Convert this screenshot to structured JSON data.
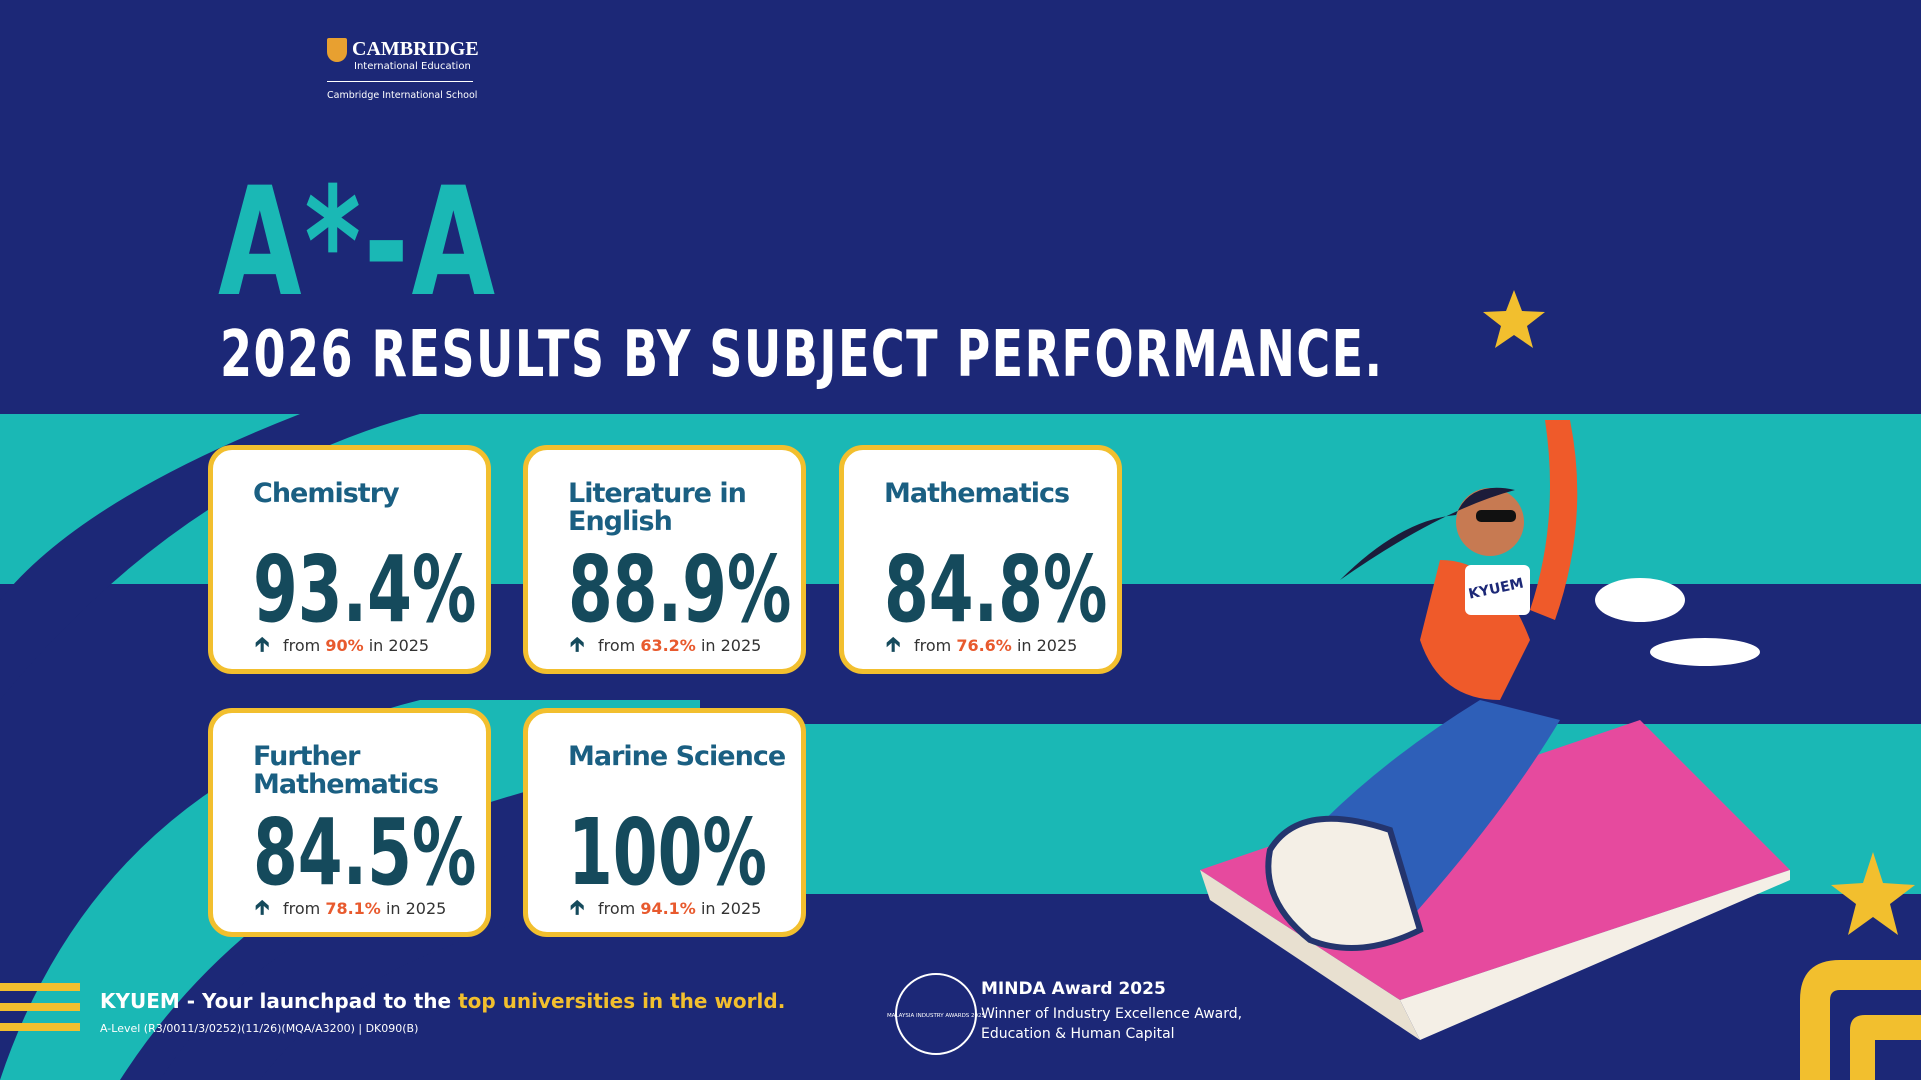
{
  "logo": {
    "brand": "CAMBRIDGE",
    "sub": "International Education",
    "school": "Cambridge International School"
  },
  "heading": {
    "grade": "A*-A",
    "title": "2026 RESULTS BY SUBJECT PERFORMANCE."
  },
  "cards": [
    {
      "subject": "Chemistry",
      "result": "93.4%",
      "from": "from",
      "previous": "90%",
      "year": "in 2025"
    },
    {
      "subject": "Literature in English",
      "result": "88.9%",
      "from": "from",
      "previous": "63.2%",
      "year": "in 2025"
    },
    {
      "subject": "Mathematics",
      "result": "84.8%",
      "from": "from",
      "previous": "76.6%",
      "year": "in 2025"
    },
    {
      "subject": "Further Mathematics",
      "result": "84.5%",
      "from": "from",
      "previous": "78.1%",
      "year": "in 2025"
    },
    {
      "subject": "Marine Science",
      "result": "100%",
      "from": "from",
      "previous": "94.1%",
      "year": "in 2025"
    }
  ],
  "illustration": {
    "shirt": "KYUEM"
  },
  "footer": {
    "tagline": "KYUEM - Your launchpad to the ",
    "highlight": "top universities in the world.",
    "accreditation": "A-Level (R3/0011/3/0252)(11/26)(MQA/A3200) | DK090(B)"
  },
  "award": {
    "badge": "MALAYSIA INDUSTRY AWARDS 2025",
    "title": "MINDA Award 2025",
    "line1": "Winner of Industry Excellence Award,",
    "line2": "Education & Human Capital"
  }
}
